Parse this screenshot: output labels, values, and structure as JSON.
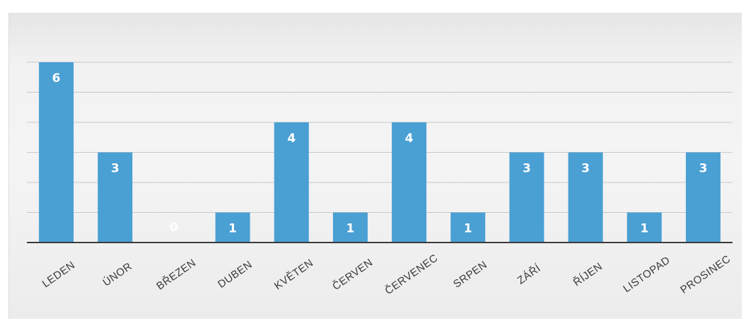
{
  "chart_data": {
    "type": "bar",
    "categories": [
      "LEDEN",
      "ÚNOR",
      "BŘEZEN",
      "DUBEN",
      "KVĚTEN",
      "ČERVEN",
      "ČERVENEC",
      "SRPEN",
      "ZÁŘÍ",
      "ŘÍJEN",
      "LISTOPAD",
      "PROSINEC"
    ],
    "values": [
      6,
      3,
      0,
      1,
      4,
      1,
      4,
      1,
      3,
      3,
      1,
      3
    ],
    "title": "",
    "xlabel": "",
    "ylabel": "",
    "ylim": [
      0,
      7
    ],
    "grid": true,
    "legend": "none",
    "colors": {
      "bar": "#4a9fd3",
      "gridline": "#c9c9c9",
      "axis": "#3c3c3c",
      "label": "#3a3a3a",
      "data_label": "#ffffff"
    }
  }
}
